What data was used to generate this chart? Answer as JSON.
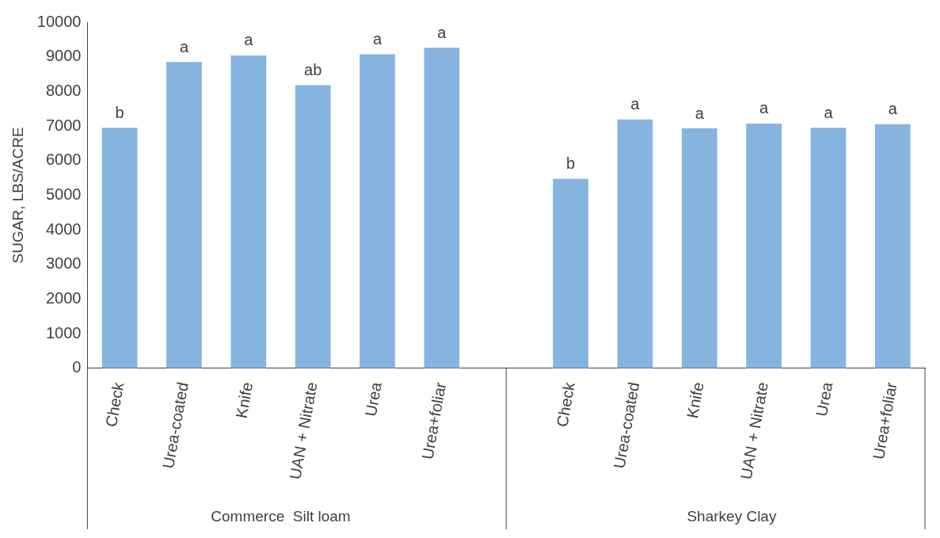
{
  "chart_data": {
    "type": "bar",
    "ylabel": "SUGAR, LBS/ACRE",
    "categories": [
      "Check",
      "Urea-coated",
      "Knife",
      "UAN + Nitrate",
      "Urea",
      "Urea+foliar",
      null,
      "Check",
      "Urea-coated",
      "Knife",
      "UAN + Nitrate",
      "Urea",
      "Urea+foliar"
    ],
    "values": [
      6950,
      8850,
      9040,
      8180,
      9070,
      9260,
      null,
      5470,
      7190,
      6930,
      7070,
      6950,
      7050
    ],
    "value_labels": [
      "b",
      "a",
      "a",
      "ab",
      "a",
      "a",
      null,
      "b",
      "a",
      "a",
      "a",
      "a",
      "a"
    ],
    "color": "#85b4e0",
    "ylim": [
      0,
      10000
    ],
    "yticks": [
      0,
      1000,
      2000,
      3000,
      4000,
      5000,
      6000,
      7000,
      8000,
      9000,
      10000
    ],
    "grid": false,
    "legend": false,
    "annotations": [
      "Commerce  Silt loam",
      "Sharkey Clay"
    ]
  }
}
